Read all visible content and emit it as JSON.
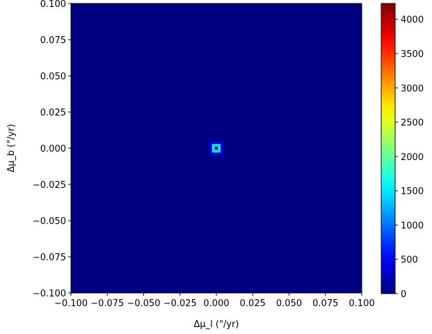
{
  "chart_data": {
    "type": "heatmap",
    "title": "",
    "xlabel": "Δμ_l (\"/yr)",
    "ylabel": "Δμ_b (\"/yr)",
    "xlim": [
      -0.1,
      0.1
    ],
    "ylim": [
      -0.1,
      0.1
    ],
    "x_ticks": [
      "−0.100",
      "−0.075",
      "−0.050",
      "−0.025",
      "0.000",
      "0.025",
      "0.050",
      "0.075",
      "0.100"
    ],
    "y_ticks": [
      "−0.100",
      "−0.075",
      "−0.050",
      "−0.025",
      "0.000",
      "0.025",
      "0.050",
      "0.075",
      "0.100"
    ],
    "x_tick_values": [
      -0.1,
      -0.075,
      -0.05,
      -0.025,
      0,
      0.025,
      0.05,
      0.075,
      0.1
    ],
    "y_tick_values": [
      -0.1,
      -0.075,
      -0.05,
      -0.025,
      0,
      0.025,
      0.05,
      0.075,
      0.1
    ],
    "colormap": "jet",
    "colorbar": {
      "min": 0,
      "max": 4230,
      "ticks": [
        0,
        500,
        1000,
        1500,
        2000,
        2500,
        3000,
        3500,
        4000
      ],
      "tick_labels": [
        "0",
        "500",
        "1000",
        "1500",
        "2000",
        "2500",
        "3000",
        "3500",
        "4000"
      ]
    },
    "background_value": 0,
    "hotspot": {
      "center": [
        0.0,
        0.0
      ],
      "peak_value": 4230,
      "ring_value": 1500,
      "halo_value": 350
    },
    "grid": false
  }
}
